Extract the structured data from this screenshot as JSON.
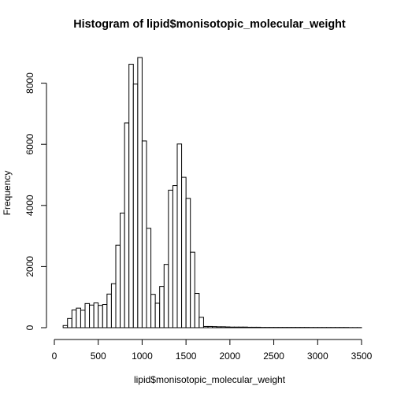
{
  "chart_data": {
    "type": "bar",
    "title": "Histogram of lipid$monisotopic_molecular_weight",
    "xlabel": "lipid$monisotopic_molecular_weight",
    "ylabel": "Frequency",
    "bin_width": 50,
    "bin_start": 100,
    "counts": [
      70,
      300,
      580,
      640,
      570,
      790,
      740,
      810,
      730,
      760,
      1100,
      1440,
      2700,
      3750,
      6700,
      8620,
      7970,
      8840,
      6110,
      3250,
      1090,
      800,
      1350,
      2070,
      4500,
      4650,
      6010,
      4920,
      4230,
      2470,
      1120,
      340,
      40,
      40,
      35,
      30,
      30,
      25,
      20,
      20,
      20,
      20,
      15,
      15,
      15,
      10,
      10,
      10,
      10,
      10,
      10,
      10,
      10,
      10,
      10,
      10,
      8,
      8,
      8,
      8,
      8,
      8,
      8,
      8,
      8,
      5,
      5,
      5
    ],
    "xlim": [
      0,
      3500
    ],
    "ylim": [
      0,
      8840
    ],
    "x_ticks": [
      0,
      500,
      1000,
      1500,
      2000,
      2500,
      3000,
      3500
    ],
    "x_tick_labels": [
      "0",
      "500",
      "1000",
      "1500",
      "2000",
      "2500",
      "3000",
      "3500"
    ],
    "y_ticks": [
      0,
      2000,
      4000,
      6000,
      8000
    ],
    "y_tick_labels": [
      "0",
      "2000",
      "4000",
      "6000",
      "8000"
    ],
    "grid": false,
    "legend": "none"
  }
}
